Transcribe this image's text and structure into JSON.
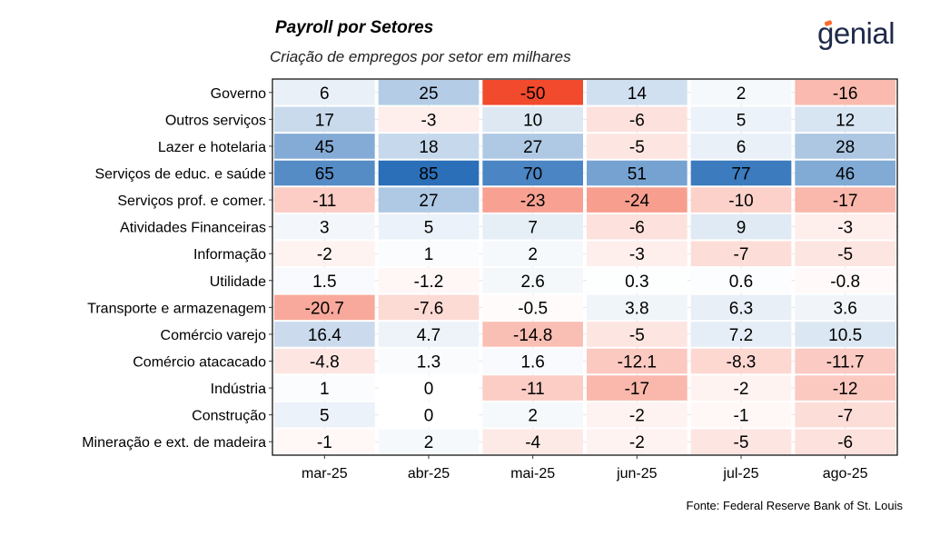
{
  "header": {
    "title": "Payroll por Setores",
    "subtitle": "Criação de empregos por setor em milhares",
    "logo_text": "genial"
  },
  "footer": {
    "source": "Fonte: Federal Reserve Bank of St. Louis"
  },
  "colors": {
    "positive_max": "#2b6fb8",
    "negative_max": "#f24a2c",
    "neutral": "#ffffff"
  },
  "chart_data": {
    "type": "heatmap",
    "title": "Payroll por Setores",
    "subtitle": "Criação de empregos por setor em milhares",
    "x": [
      "mar-25",
      "abr-25",
      "mai-25",
      "jun-25",
      "jul-25",
      "ago-25"
    ],
    "y": [
      "Governo",
      "Outros serviços",
      "Lazer e hotelaria",
      "Serviços de educ. e saúde",
      "Serviços prof. e comer.",
      "Atividades Financeiras",
      "Informação",
      "Utilidade",
      "Transporte e armazenagem",
      "Comércio varejo",
      "Comércio atacacado",
      "Indústria",
      "Construção",
      "Mineração e ext. de madeira"
    ],
    "values": [
      [
        6,
        25,
        -50,
        14,
        2,
        -16
      ],
      [
        17,
        -3,
        10,
        -6,
        5,
        12
      ],
      [
        45,
        18,
        27,
        -5,
        6,
        28
      ],
      [
        65,
        85,
        70,
        51,
        77,
        46
      ],
      [
        -11,
        27,
        -23,
        -24,
        -10,
        -17
      ],
      [
        3,
        5,
        7,
        -6,
        9,
        -3
      ],
      [
        -2,
        1,
        2,
        -3,
        -7,
        -5
      ],
      [
        1.5,
        -1.2,
        2.6,
        0.3,
        0.6,
        -0.8
      ],
      [
        -20.7,
        -7.6,
        -0.5,
        3.8,
        6.3,
        3.6
      ],
      [
        16.4,
        4.7,
        -14.8,
        -5,
        7.2,
        10.5
      ],
      [
        -4.8,
        1.3,
        1.6,
        -12.1,
        -8.3,
        -11.7
      ],
      [
        1,
        0,
        -11,
        -17,
        -2,
        -12
      ],
      [
        5,
        0,
        2,
        -2,
        -1,
        -7
      ],
      [
        -1,
        2,
        -4,
        -2,
        -5,
        -6
      ]
    ],
    "labels": [
      [
        "6",
        "25",
        "-50",
        "14",
        "2",
        "-16"
      ],
      [
        "17",
        "-3",
        "10",
        "-6",
        "5",
        "12"
      ],
      [
        "45",
        "18",
        "27",
        "-5",
        "6",
        "28"
      ],
      [
        "65",
        "85",
        "70",
        "51",
        "77",
        "46"
      ],
      [
        "-11",
        "27",
        "-23",
        "-24",
        "-10",
        "-17"
      ],
      [
        "3",
        "5",
        "7",
        "-6",
        "9",
        "-3"
      ],
      [
        "-2",
        "1",
        "2",
        "-3",
        "-7",
        "-5"
      ],
      [
        "1.5",
        "-1.2",
        "2.6",
        "0.3",
        "0.6",
        "-0.8"
      ],
      [
        "-20.7",
        "-7.6",
        "-0.5",
        "3.8",
        "6.3",
        "3.6"
      ],
      [
        "16.4",
        "4.7",
        "-14.8",
        "-5",
        "7.2",
        "10.5"
      ],
      [
        "-4.8",
        "1.3",
        "1.6",
        "-12.1",
        "-8.3",
        "-11.7"
      ],
      [
        "1",
        "0",
        "-11",
        "-17",
        "-2",
        "-12"
      ],
      [
        "5",
        "0",
        "2",
        "-2",
        "-1",
        "-7"
      ],
      [
        "-1",
        "2",
        "-4",
        "-2",
        "-5",
        "-6"
      ]
    ],
    "xlabel": "",
    "ylabel": "",
    "legend": "none",
    "grid": true
  }
}
